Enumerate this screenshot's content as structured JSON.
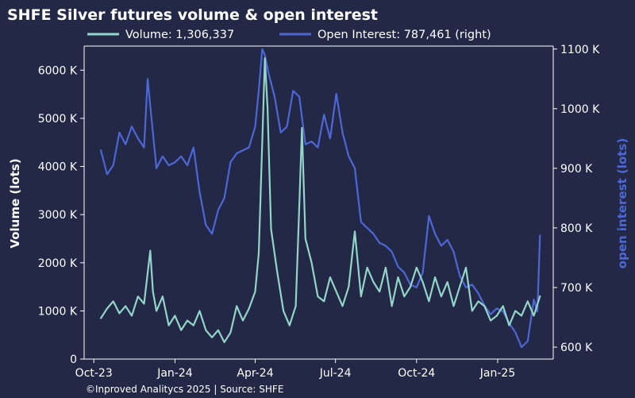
{
  "chart_data": {
    "type": "line",
    "title": "SHFE Silver futures volume & open interest",
    "ylabel_left": "Volume (lots)",
    "ylabel_right": "open interest (lots)",
    "source": "©Inproved Analitycs 2025 | Source: SHFE",
    "x_ticks": [
      {
        "label": "Oct-23",
        "date": "2023-10-01"
      },
      {
        "label": "Jan-24",
        "date": "2024-01-01"
      },
      {
        "label": "Apr-24",
        "date": "2024-04-01"
      },
      {
        "label": "Jul-24",
        "date": "2024-07-01"
      },
      {
        "label": "Oct-24",
        "date": "2024-10-01"
      },
      {
        "label": "Jan-25",
        "date": "2025-01-01"
      }
    ],
    "y_left": {
      "lim": [
        0,
        6500000
      ],
      "ticks": [
        0,
        1000000,
        2000000,
        3000000,
        4000000,
        5000000,
        6000000
      ],
      "labels": [
        "0",
        "1000 K",
        "2000 K",
        "3000 K",
        "4000 K",
        "5000 K",
        "6000 K"
      ]
    },
    "y_right": {
      "lim": [
        580000,
        1105000
      ],
      "ticks": [
        600000,
        700000,
        800000,
        900000,
        1000000,
        1100000
      ],
      "labels": [
        "600 K",
        "700 K",
        "800 K",
        "900 K",
        "1000 K",
        "1100 K"
      ]
    },
    "grid": false,
    "legend_placement": "top",
    "colors": {
      "volume": "#93d5c8",
      "open_interest": "#4e67d6",
      "background": "#222845",
      "text": "#ffffff"
    },
    "series": [
      {
        "name": "Volume: 1,306,337",
        "axis": "left",
        "color": "#93d5c8",
        "points": [
          [
            "2023-10-09",
            850000
          ],
          [
            "2023-10-16",
            1050000
          ],
          [
            "2023-10-23",
            1200000
          ],
          [
            "2023-10-30",
            950000
          ],
          [
            "2023-11-06",
            1100000
          ],
          [
            "2023-11-13",
            900000
          ],
          [
            "2023-11-20",
            1300000
          ],
          [
            "2023-11-27",
            1150000
          ],
          [
            "2023-12-04",
            2250000
          ],
          [
            "2023-12-07",
            1400000
          ],
          [
            "2023-12-11",
            1000000
          ],
          [
            "2023-12-18",
            1300000
          ],
          [
            "2023-12-25",
            700000
          ],
          [
            "2024-01-01",
            900000
          ],
          [
            "2024-01-08",
            600000
          ],
          [
            "2024-01-15",
            800000
          ],
          [
            "2024-01-22",
            700000
          ],
          [
            "2024-01-29",
            1000000
          ],
          [
            "2024-02-05",
            600000
          ],
          [
            "2024-02-12",
            450000
          ],
          [
            "2024-02-19",
            600000
          ],
          [
            "2024-02-26",
            350000
          ],
          [
            "2024-03-04",
            550000
          ],
          [
            "2024-03-11",
            1100000
          ],
          [
            "2024-03-18",
            800000
          ],
          [
            "2024-03-25",
            1050000
          ],
          [
            "2024-04-01",
            1400000
          ],
          [
            "2024-04-05",
            2200000
          ],
          [
            "2024-04-09",
            4500000
          ],
          [
            "2024-04-12",
            6250000
          ],
          [
            "2024-04-15",
            5200000
          ],
          [
            "2024-04-19",
            2700000
          ],
          [
            "2024-04-26",
            1800000
          ],
          [
            "2024-05-03",
            1000000
          ],
          [
            "2024-05-10",
            700000
          ],
          [
            "2024-05-17",
            1100000
          ],
          [
            "2024-05-21",
            3200000
          ],
          [
            "2024-05-24",
            4800000
          ],
          [
            "2024-05-28",
            2500000
          ],
          [
            "2024-06-04",
            2000000
          ],
          [
            "2024-06-11",
            1300000
          ],
          [
            "2024-06-18",
            1200000
          ],
          [
            "2024-06-25",
            1700000
          ],
          [
            "2024-07-02",
            1400000
          ],
          [
            "2024-07-09",
            1100000
          ],
          [
            "2024-07-16",
            1500000
          ],
          [
            "2024-07-23",
            2650000
          ],
          [
            "2024-07-30",
            1300000
          ],
          [
            "2024-08-06",
            1900000
          ],
          [
            "2024-08-13",
            1600000
          ],
          [
            "2024-08-20",
            1400000
          ],
          [
            "2024-08-27",
            1900000
          ],
          [
            "2024-09-03",
            1100000
          ],
          [
            "2024-09-10",
            1700000
          ],
          [
            "2024-09-17",
            1300000
          ],
          [
            "2024-09-24",
            1500000
          ],
          [
            "2024-10-01",
            1900000
          ],
          [
            "2024-10-08",
            1600000
          ],
          [
            "2024-10-15",
            1200000
          ],
          [
            "2024-10-22",
            1700000
          ],
          [
            "2024-10-29",
            1300000
          ],
          [
            "2024-11-05",
            1600000
          ],
          [
            "2024-11-12",
            1100000
          ],
          [
            "2024-11-19",
            1500000
          ],
          [
            "2024-11-26",
            1900000
          ],
          [
            "2024-12-03",
            1000000
          ],
          [
            "2024-12-10",
            1200000
          ],
          [
            "2024-12-17",
            1100000
          ],
          [
            "2024-12-24",
            800000
          ],
          [
            "2024-12-31",
            900000
          ],
          [
            "2025-01-07",
            1100000
          ],
          [
            "2025-01-14",
            700000
          ],
          [
            "2025-01-21",
            1000000
          ],
          [
            "2025-01-28",
            900000
          ],
          [
            "2025-02-04",
            1200000
          ],
          [
            "2025-02-11",
            900000
          ],
          [
            "2025-02-18",
            1306337
          ]
        ]
      },
      {
        "name": "Open Interest: 787,461 (right)",
        "axis": "right",
        "color": "#4e67d6",
        "points": [
          [
            "2023-10-09",
            930000
          ],
          [
            "2023-10-16",
            890000
          ],
          [
            "2023-10-23",
            905000
          ],
          [
            "2023-10-30",
            960000
          ],
          [
            "2023-11-06",
            940000
          ],
          [
            "2023-11-13",
            970000
          ],
          [
            "2023-11-20",
            950000
          ],
          [
            "2023-11-27",
            935000
          ],
          [
            "2023-12-01",
            1050000
          ],
          [
            "2023-12-05",
            990000
          ],
          [
            "2023-12-11",
            900000
          ],
          [
            "2023-12-18",
            920000
          ],
          [
            "2023-12-25",
            905000
          ],
          [
            "2024-01-01",
            910000
          ],
          [
            "2024-01-08",
            920000
          ],
          [
            "2024-01-15",
            905000
          ],
          [
            "2024-01-22",
            935000
          ],
          [
            "2024-01-29",
            860000
          ],
          [
            "2024-02-05",
            805000
          ],
          [
            "2024-02-12",
            790000
          ],
          [
            "2024-02-19",
            830000
          ],
          [
            "2024-02-26",
            850000
          ],
          [
            "2024-03-04",
            910000
          ],
          [
            "2024-03-11",
            925000
          ],
          [
            "2024-03-18",
            930000
          ],
          [
            "2024-03-25",
            935000
          ],
          [
            "2024-04-01",
            970000
          ],
          [
            "2024-04-05",
            1030000
          ],
          [
            "2024-04-09",
            1100000
          ],
          [
            "2024-04-12",
            1090000
          ],
          [
            "2024-04-16",
            1060000
          ],
          [
            "2024-04-23",
            1020000
          ],
          [
            "2024-04-30",
            960000
          ],
          [
            "2024-05-07",
            970000
          ],
          [
            "2024-05-14",
            1030000
          ],
          [
            "2024-05-21",
            1020000
          ],
          [
            "2024-05-28",
            940000
          ],
          [
            "2024-06-04",
            945000
          ],
          [
            "2024-06-11",
            935000
          ],
          [
            "2024-06-18",
            990000
          ],
          [
            "2024-06-25",
            950000
          ],
          [
            "2024-07-02",
            1025000
          ],
          [
            "2024-07-09",
            960000
          ],
          [
            "2024-07-16",
            920000
          ],
          [
            "2024-07-23",
            900000
          ],
          [
            "2024-07-30",
            810000
          ],
          [
            "2024-08-06",
            800000
          ],
          [
            "2024-08-13",
            790000
          ],
          [
            "2024-08-20",
            775000
          ],
          [
            "2024-08-27",
            770000
          ],
          [
            "2024-09-03",
            760000
          ],
          [
            "2024-09-10",
            735000
          ],
          [
            "2024-09-17",
            725000
          ],
          [
            "2024-09-24",
            705000
          ],
          [
            "2024-10-01",
            700000
          ],
          [
            "2024-10-08",
            725000
          ],
          [
            "2024-10-15",
            820000
          ],
          [
            "2024-10-22",
            790000
          ],
          [
            "2024-10-29",
            770000
          ],
          [
            "2024-11-05",
            780000
          ],
          [
            "2024-11-12",
            760000
          ],
          [
            "2024-11-19",
            720000
          ],
          [
            "2024-11-26",
            700000
          ],
          [
            "2024-12-03",
            705000
          ],
          [
            "2024-12-10",
            690000
          ],
          [
            "2024-12-17",
            670000
          ],
          [
            "2024-12-24",
            655000
          ],
          [
            "2024-12-31",
            665000
          ],
          [
            "2025-01-07",
            660000
          ],
          [
            "2025-01-14",
            640000
          ],
          [
            "2025-01-21",
            625000
          ],
          [
            "2025-01-28",
            600000
          ],
          [
            "2025-02-04",
            610000
          ],
          [
            "2025-02-11",
            680000
          ],
          [
            "2025-02-15",
            660000
          ],
          [
            "2025-02-18",
            787461
          ]
        ]
      }
    ]
  }
}
